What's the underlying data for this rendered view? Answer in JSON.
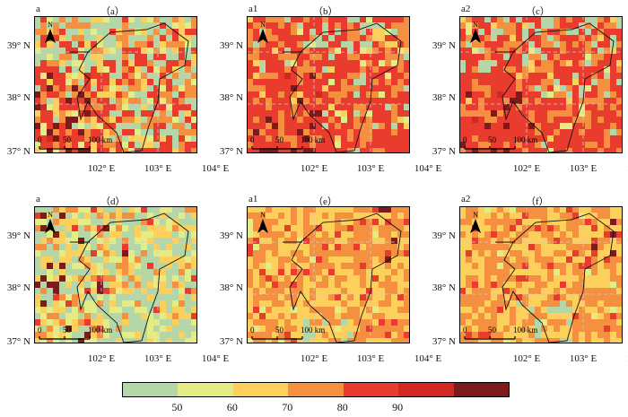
{
  "panels": [
    {
      "tag": "a",
      "label": "（a）",
      "scheme": "hot"
    },
    {
      "tag": "a1",
      "label": "（b）",
      "scheme": "hotter"
    },
    {
      "tag": "a2",
      "label": "（c）",
      "scheme": "hotter"
    },
    {
      "tag": "a",
      "label": "（d）",
      "scheme": "cool"
    },
    {
      "tag": "a1",
      "label": "（e）",
      "scheme": "mid"
    },
    {
      "tag": "a2",
      "label": "（f）",
      "scheme": "mid"
    }
  ],
  "lat_ticks": [
    "39° N",
    "38° N",
    "37° N"
  ],
  "lon_ticks": [
    "102° E",
    "103° E",
    "104° E"
  ],
  "scale_labels": [
    "0",
    "50",
    "100 km"
  ],
  "north_label": "N",
  "colorbar": {
    "colors": [
      "#b5d7a8",
      "#e3ec85",
      "#fcd05b",
      "#f49040",
      "#e93b2e",
      "#d12821",
      "#7d1a1c"
    ],
    "ticks": [
      "50",
      "60",
      "70",
      "80",
      "90"
    ]
  }
}
